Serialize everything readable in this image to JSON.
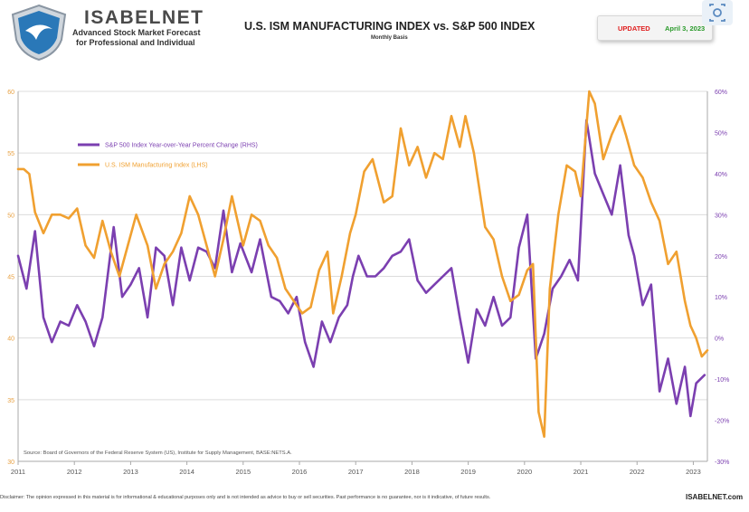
{
  "header": {
    "brand_name": "ISABELNET",
    "brand_sub1": "Advanced Stock Market Forecast",
    "brand_sub2": "for Professional and Individual",
    "title": "U.S. ISM MANUFACTURING INDEX vs. S&P 500 INDEX",
    "subtitle": "Monthly Basis",
    "updated_label": "UPDATED",
    "updated_date": "April 3, 2023"
  },
  "footer": {
    "disclaimer": "Disclaimer: The opinion expressed in this material is for informational & educational purposes only and is not intended as advice to buy or sell securities. Past performance is no guarantee, nor is it indicative, of future results.",
    "brand": "ISABELNET.com"
  },
  "icons": {
    "logo": "shield-logo-icon",
    "scan": "scan-icon"
  },
  "colors": {
    "sp500": "#7b3fb0",
    "ism": "#f0a030",
    "grid": "#dcdcdc",
    "axis": "#aaaaaa",
    "right_tick_text": "#7b3fb0",
    "left_tick_text": "#e8a040"
  },
  "chart_data": {
    "type": "line",
    "source": "Source: Board of Governors of the Federal Reserve System (US), Institute for Supply Management, BASE:NETS.A.",
    "x_ticks": [
      "2011",
      "2012",
      "2013",
      "2014",
      "2015",
      "2016",
      "2017",
      "2018",
      "2019",
      "2020",
      "2021",
      "2022",
      "2023"
    ],
    "x_range": [
      2011.0,
      2023.25
    ],
    "left_axis": {
      "ticks": [
        "60",
        "55",
        "50",
        "45",
        "40",
        "35",
        "30"
      ],
      "range": [
        30,
        60
      ]
    },
    "right_axis": {
      "ticks": [
        "60%",
        "50%",
        "40%",
        "30%",
        "20%",
        "10%",
        "0%",
        "-10%",
        "-20%",
        "-30%"
      ],
      "range": [
        -30,
        60
      ]
    },
    "legend_placement": "upper-left",
    "series": [
      {
        "name": "S&P 500 Index Year-over-Year Percent Change (RHS)",
        "axis": "right",
        "points": [
          [
            2011.0,
            20
          ],
          [
            2011.15,
            12
          ],
          [
            2011.3,
            26
          ],
          [
            2011.45,
            5
          ],
          [
            2011.6,
            -1
          ],
          [
            2011.75,
            4
          ],
          [
            2011.9,
            3
          ],
          [
            2012.05,
            8
          ],
          [
            2012.2,
            4
          ],
          [
            2012.35,
            -2
          ],
          [
            2012.5,
            5
          ],
          [
            2012.7,
            27
          ],
          [
            2012.85,
            10
          ],
          [
            2013.0,
            13
          ],
          [
            2013.15,
            17
          ],
          [
            2013.3,
            5
          ],
          [
            2013.45,
            22
          ],
          [
            2013.6,
            20
          ],
          [
            2013.75,
            8
          ],
          [
            2013.9,
            22
          ],
          [
            2014.05,
            14
          ],
          [
            2014.2,
            22
          ],
          [
            2014.35,
            21
          ],
          [
            2014.5,
            17
          ],
          [
            2014.65,
            31
          ],
          [
            2014.8,
            16
          ],
          [
            2014.95,
            23
          ],
          [
            2015.15,
            16
          ],
          [
            2015.3,
            24
          ],
          [
            2015.5,
            10
          ],
          [
            2015.65,
            9
          ],
          [
            2015.8,
            6
          ],
          [
            2015.95,
            10
          ],
          [
            2016.1,
            -1
          ],
          [
            2016.25,
            -7
          ],
          [
            2016.4,
            4
          ],
          [
            2016.55,
            -1
          ],
          [
            2016.7,
            5
          ],
          [
            2016.85,
            8
          ],
          [
            2016.95,
            15
          ],
          [
            2017.05,
            20
          ],
          [
            2017.2,
            15
          ],
          [
            2017.35,
            15
          ],
          [
            2017.5,
            17
          ],
          [
            2017.65,
            20
          ],
          [
            2017.8,
            21
          ],
          [
            2017.95,
            24
          ],
          [
            2018.1,
            14
          ],
          [
            2018.25,
            11
          ],
          [
            2018.4,
            13
          ],
          [
            2018.55,
            15
          ],
          [
            2018.7,
            17
          ],
          [
            2018.85,
            5
          ],
          [
            2019.0,
            -6
          ],
          [
            2019.15,
            7
          ],
          [
            2019.3,
            3
          ],
          [
            2019.45,
            10
          ],
          [
            2019.6,
            3
          ],
          [
            2019.75,
            5
          ],
          [
            2019.9,
            22
          ],
          [
            2020.05,
            30
          ],
          [
            2020.2,
            -5
          ],
          [
            2020.35,
            1
          ],
          [
            2020.5,
            12
          ],
          [
            2020.65,
            15
          ],
          [
            2020.8,
            19
          ],
          [
            2020.95,
            14
          ],
          [
            2021.1,
            53
          ],
          [
            2021.25,
            40
          ],
          [
            2021.4,
            35
          ],
          [
            2021.55,
            30
          ],
          [
            2021.7,
            42
          ],
          [
            2021.85,
            25
          ],
          [
            2021.95,
            20
          ],
          [
            2022.1,
            8
          ],
          [
            2022.25,
            13
          ],
          [
            2022.4,
            -13
          ],
          [
            2022.55,
            -5
          ],
          [
            2022.7,
            -16
          ],
          [
            2022.85,
            -7
          ],
          [
            2022.95,
            -19
          ],
          [
            2023.05,
            -11
          ],
          [
            2023.2,
            -9
          ]
        ]
      },
      {
        "name": "U.S. ISM Manufacturing Index (LHS)",
        "axis": "left",
        "points": [
          [
            2011.0,
            53.7
          ],
          [
            2011.1,
            53.7
          ],
          [
            2011.2,
            53.3
          ],
          [
            2011.3,
            50.2
          ],
          [
            2011.45,
            48.5
          ],
          [
            2011.6,
            50.0
          ],
          [
            2011.75,
            50.0
          ],
          [
            2011.9,
            49.7
          ],
          [
            2012.05,
            50.5
          ],
          [
            2012.2,
            47.5
          ],
          [
            2012.35,
            46.5
          ],
          [
            2012.5,
            49.5
          ],
          [
            2012.65,
            47.0
          ],
          [
            2012.8,
            45.0
          ],
          [
            2012.95,
            47.5
          ],
          [
            2013.1,
            50.0
          ],
          [
            2013.3,
            47.5
          ],
          [
            2013.45,
            44.0
          ],
          [
            2013.6,
            46.0
          ],
          [
            2013.75,
            47.0
          ],
          [
            2013.9,
            48.5
          ],
          [
            2014.05,
            51.5
          ],
          [
            2014.2,
            50.0
          ],
          [
            2014.35,
            47.5
          ],
          [
            2014.5,
            45.0
          ],
          [
            2014.65,
            48.0
          ],
          [
            2014.8,
            51.5
          ],
          [
            2015.0,
            47.5
          ],
          [
            2015.15,
            50.0
          ],
          [
            2015.3,
            49.5
          ],
          [
            2015.45,
            47.5
          ],
          [
            2015.6,
            46.5
          ],
          [
            2015.75,
            44.0
          ],
          [
            2015.9,
            43.0
          ],
          [
            2016.05,
            42.0
          ],
          [
            2016.2,
            42.5
          ],
          [
            2016.35,
            45.5
          ],
          [
            2016.5,
            47.0
          ],
          [
            2016.6,
            42.0
          ],
          [
            2016.75,
            45.0
          ],
          [
            2016.9,
            48.5
          ],
          [
            2017.0,
            50.0
          ],
          [
            2017.15,
            53.5
          ],
          [
            2017.3,
            54.5
          ],
          [
            2017.5,
            51.0
          ],
          [
            2017.65,
            51.5
          ],
          [
            2017.8,
            57.0
          ],
          [
            2017.95,
            54.0
          ],
          [
            2018.1,
            55.5
          ],
          [
            2018.25,
            53.0
          ],
          [
            2018.4,
            55.0
          ],
          [
            2018.55,
            54.5
          ],
          [
            2018.7,
            58.0
          ],
          [
            2018.85,
            55.5
          ],
          [
            2018.95,
            58.0
          ],
          [
            2019.1,
            55.0
          ],
          [
            2019.3,
            49.0
          ],
          [
            2019.45,
            48.0
          ],
          [
            2019.6,
            45.0
          ],
          [
            2019.75,
            43.0
          ],
          [
            2019.9,
            43.5
          ],
          [
            2020.05,
            45.5
          ],
          [
            2020.15,
            46.0
          ],
          [
            2020.25,
            34.0
          ],
          [
            2020.35,
            32.0
          ],
          [
            2020.45,
            44.0
          ],
          [
            2020.6,
            50.0
          ],
          [
            2020.75,
            54.0
          ],
          [
            2020.9,
            53.5
          ],
          [
            2021.0,
            51.5
          ],
          [
            2021.15,
            60.0
          ],
          [
            2021.25,
            59.0
          ],
          [
            2021.4,
            54.5
          ],
          [
            2021.55,
            56.5
          ],
          [
            2021.7,
            58.0
          ],
          [
            2021.8,
            56.5
          ],
          [
            2021.95,
            54.0
          ],
          [
            2022.1,
            53.0
          ],
          [
            2022.25,
            51.0
          ],
          [
            2022.4,
            49.5
          ],
          [
            2022.55,
            46.0
          ],
          [
            2022.7,
            47.0
          ],
          [
            2022.85,
            43.0
          ],
          [
            2022.95,
            41.0
          ],
          [
            2023.05,
            40.0
          ],
          [
            2023.15,
            38.5
          ],
          [
            2023.25,
            39.0
          ]
        ]
      }
    ]
  }
}
